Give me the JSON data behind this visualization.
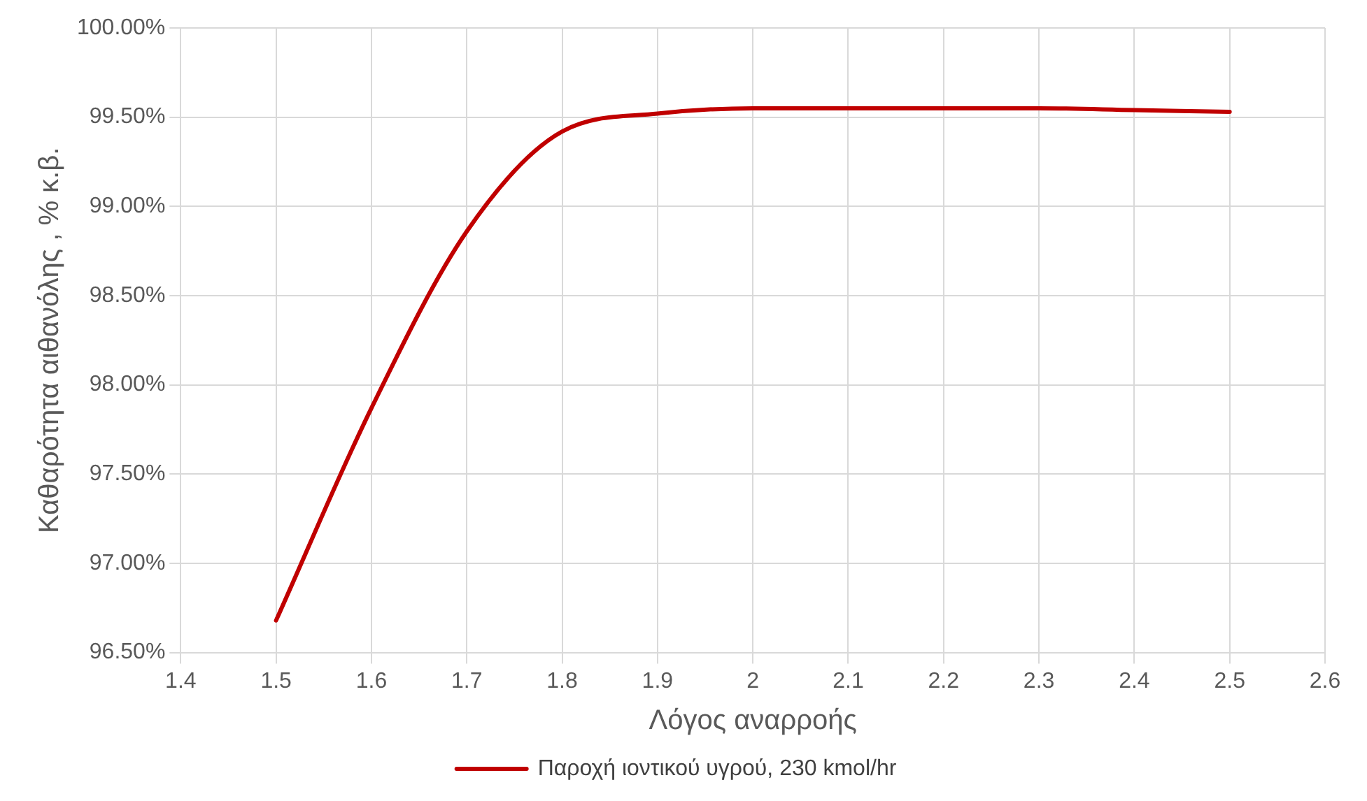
{
  "chart_data": {
    "type": "line",
    "xlabel": "Λόγος αναρροής",
    "ylabel": "Καθαρότητα αιθανόλης , % κ.β.",
    "x": [
      1.5,
      1.6,
      1.7,
      1.8,
      1.9,
      2.0,
      2.1,
      2.2,
      2.3,
      2.4,
      2.5
    ],
    "series": [
      {
        "name": "Παροχή ιοντικού υγρού, 230 kmol/hr",
        "color": "#c00000",
        "values": [
          96.68,
          97.87,
          98.86,
          99.42,
          99.52,
          99.55,
          99.55,
          99.55,
          99.55,
          99.54,
          99.53
        ]
      }
    ],
    "xlim": [
      1.4,
      2.6
    ],
    "xticks": [
      1.4,
      1.5,
      1.6,
      1.7,
      1.8,
      1.9,
      2,
      2.1,
      2.2,
      2.3,
      2.4,
      2.5,
      2.6
    ],
    "ylim": [
      96.5,
      100
    ],
    "yticks": [
      {
        "value": 96.5,
        "label": "96.50%"
      },
      {
        "value": 97,
        "label": "97.00%"
      },
      {
        "value": 97.5,
        "label": "97.50%"
      },
      {
        "value": 98,
        "label": "98.00%"
      },
      {
        "value": 98.5,
        "label": "98.50%"
      },
      {
        "value": 99,
        "label": "99.00%"
      },
      {
        "value": 99.5,
        "label": "99.50%"
      },
      {
        "value": 100,
        "label": "100.00%"
      }
    ],
    "grid": true,
    "legend": "bottom",
    "marker": "none",
    "line_style": "solid"
  }
}
